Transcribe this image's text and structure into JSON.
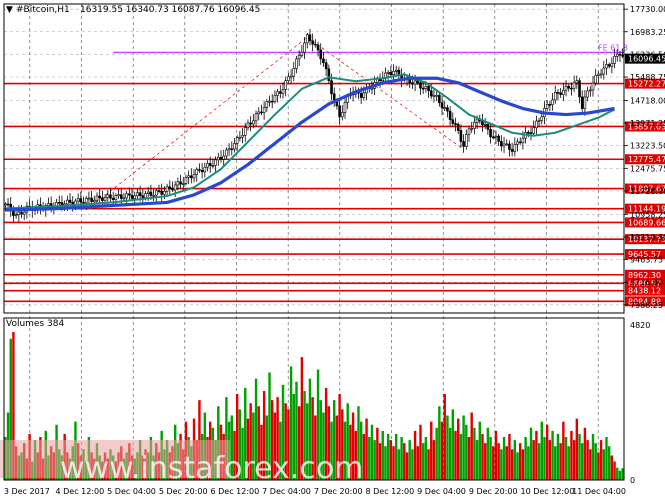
{
  "header": {
    "symbol": "#Bitcoin,H1",
    "ohlc": "16319.55 16340.73 16087.76 16096.45"
  },
  "volumes_label": "Volumes 384",
  "watermark": "www.instaforex.com",
  "fib_label": "FE 61.8",
  "current_price": "16096.45",
  "colors": {
    "level": "#e00000",
    "fib": "#c040ff",
    "ma_fast": "#1a8c80",
    "ma_slow": "#2848d0",
    "candle": "#000000",
    "vol_up": "#00a000",
    "vol_down": "#e00000",
    "background": "#ffffff"
  },
  "chart_data": {
    "type": "candlestick",
    "price_axis": {
      "ticks": [
        "17730.00",
        "16983.25",
        "16236.50",
        "15488.75",
        "14718.00",
        "13971.25",
        "13223.50",
        "12475.75",
        "11728.00",
        "10958.25",
        "10210.50",
        "9463.75",
        "8716.00",
        "7968.25"
      ],
      "range": [
        7700,
        17900
      ]
    },
    "volume_axis": {
      "ticks": [
        "4820",
        "0"
      ],
      "max": 4820
    },
    "time_axis": {
      "labels": [
        "3 Dec 2017",
        "4 Dec 12:00",
        "5 Dec 04:00",
        "5 Dec 20:00",
        "6 Dec 12:00",
        "7 Dec 04:00",
        "7 Dec 20:00",
        "8 Dec 12:00",
        "9 Dec 04:00",
        "9 Dec 20:00",
        "10 Dec 12:00",
        "11 Dec 04:00"
      ]
    },
    "levels": [
      {
        "value": 15272.27,
        "label": "15272.27"
      },
      {
        "value": 13857.03,
        "label": "13857.03"
      },
      {
        "value": 12775.47,
        "label": "12775.47"
      },
      {
        "value": 11807.67,
        "label": "11807.67"
      },
      {
        "value": 11144.19,
        "label": "11144.19"
      },
      {
        "value": 10689.66,
        "label": "10689.66"
      },
      {
        "value": 10137.73,
        "label": "10137.73"
      },
      {
        "value": 9645.57,
        "label": "9645.57"
      },
      {
        "value": 8962.3,
        "label": "8962.30"
      },
      {
        "value": 8680.57,
        "label": "8680.57"
      },
      {
        "value": 8438.12,
        "label": "8438.12"
      },
      {
        "value": 8084.88,
        "label": "8084.88"
      }
    ],
    "fib_level": 16300,
    "close_path": [
      [
        0,
        11300
      ],
      [
        4,
        10900
      ],
      [
        8,
        11150
      ],
      [
        14,
        11200
      ],
      [
        20,
        11300
      ],
      [
        28,
        11400
      ],
      [
        36,
        11500
      ],
      [
        44,
        11550
      ],
      [
        52,
        11600
      ],
      [
        58,
        11700
      ],
      [
        62,
        11850
      ],
      [
        66,
        12050
      ],
      [
        70,
        12300
      ],
      [
        74,
        12500
      ],
      [
        78,
        12700
      ],
      [
        82,
        13000
      ],
      [
        86,
        13400
      ],
      [
        90,
        13900
      ],
      [
        94,
        14300
      ],
      [
        98,
        14700
      ],
      [
        102,
        15000
      ],
      [
        106,
        15600
      ],
      [
        110,
        16400
      ],
      [
        112,
        16800
      ],
      [
        114,
        16650
      ],
      [
        118,
        16000
      ],
      [
        122,
        14700
      ],
      [
        124,
        14200
      ],
      [
        128,
        15000
      ],
      [
        132,
        14900
      ],
      [
        136,
        15200
      ],
      [
        140,
        15500
      ],
      [
        144,
        15700
      ],
      [
        148,
        15400
      ],
      [
        152,
        15300
      ],
      [
        156,
        15100
      ],
      [
        160,
        14800
      ],
      [
        164,
        14300
      ],
      [
        168,
        13700
      ],
      [
        170,
        13200
      ],
      [
        172,
        13800
      ],
      [
        176,
        14100
      ],
      [
        180,
        13600
      ],
      [
        184,
        13300
      ],
      [
        188,
        13100
      ],
      [
        192,
        13500
      ],
      [
        196,
        13800
      ],
      [
        200,
        14400
      ],
      [
        204,
        14900
      ],
      [
        208,
        15100
      ],
      [
        212,
        15300
      ],
      [
        214,
        14500
      ],
      [
        216,
        15000
      ],
      [
        220,
        15600
      ],
      [
        224,
        15900
      ],
      [
        228,
        16300
      ],
      [
        230,
        16096.45
      ]
    ],
    "ma_fast": [
      [
        0,
        11150
      ],
      [
        20,
        11230
      ],
      [
        40,
        11350
      ],
      [
        60,
        11560
      ],
      [
        70,
        11850
      ],
      [
        80,
        12450
      ],
      [
        90,
        13350
      ],
      [
        100,
        14250
      ],
      [
        110,
        15100
      ],
      [
        120,
        15480
      ],
      [
        130,
        15350
      ],
      [
        140,
        15450
      ],
      [
        148,
        15580
      ],
      [
        156,
        15300
      ],
      [
        164,
        14800
      ],
      [
        172,
        14250
      ],
      [
        180,
        13950
      ],
      [
        188,
        13650
      ],
      [
        196,
        13550
      ],
      [
        204,
        13650
      ],
      [
        212,
        13900
      ],
      [
        220,
        14150
      ],
      [
        226,
        14420
      ]
    ],
    "ma_slow": [
      [
        0,
        11100
      ],
      [
        20,
        11150
      ],
      [
        40,
        11250
      ],
      [
        60,
        11350
      ],
      [
        70,
        11600
      ],
      [
        80,
        12000
      ],
      [
        90,
        12600
      ],
      [
        100,
        13300
      ],
      [
        110,
        14000
      ],
      [
        120,
        14600
      ],
      [
        130,
        15000
      ],
      [
        140,
        15300
      ],
      [
        150,
        15450
      ],
      [
        160,
        15450
      ],
      [
        168,
        15300
      ],
      [
        176,
        15000
      ],
      [
        184,
        14700
      ],
      [
        192,
        14450
      ],
      [
        200,
        14300
      ],
      [
        208,
        14250
      ],
      [
        216,
        14300
      ],
      [
        226,
        14450
      ]
    ],
    "volumes": [
      [
        0,
        1400
      ],
      [
        1,
        2200
      ],
      [
        2,
        4600
      ],
      [
        3,
        4820
      ],
      [
        4,
        1100
      ],
      [
        5,
        800
      ],
      [
        6,
        900
      ],
      [
        7,
        1200
      ],
      [
        8,
        700
      ],
      [
        9,
        1500
      ],
      [
        10,
        600
      ],
      [
        11,
        1300
      ],
      [
        12,
        900
      ],
      [
        13,
        1400
      ],
      [
        14,
        700
      ],
      [
        15,
        1600
      ],
      [
        16,
        800
      ],
      [
        17,
        1100
      ],
      [
        18,
        900
      ],
      [
        19,
        1800
      ],
      [
        20,
        1000
      ],
      [
        21,
        800
      ],
      [
        22,
        1500
      ],
      [
        23,
        900
      ],
      [
        24,
        700
      ],
      [
        25,
        1100
      ],
      [
        26,
        1900
      ],
      [
        27,
        1200
      ],
      [
        28,
        800
      ],
      [
        29,
        1000
      ],
      [
        30,
        600
      ],
      [
        31,
        1400
      ],
      [
        32,
        900
      ],
      [
        33,
        700
      ],
      [
        34,
        1200
      ],
      [
        35,
        800
      ],
      [
        36,
        600
      ],
      [
        37,
        900
      ],
      [
        38,
        700
      ],
      [
        39,
        1000
      ],
      [
        40,
        800
      ],
      [
        41,
        600
      ],
      [
        42,
        900
      ],
      [
        43,
        1100
      ],
      [
        44,
        700
      ],
      [
        45,
        900
      ],
      [
        46,
        1200
      ],
      [
        47,
        800
      ],
      [
        48,
        700
      ],
      [
        49,
        900
      ],
      [
        50,
        1300
      ],
      [
        51,
        800
      ],
      [
        52,
        1000
      ],
      [
        53,
        900
      ],
      [
        54,
        1400
      ],
      [
        55,
        800
      ],
      [
        56,
        1200
      ],
      [
        57,
        900
      ],
      [
        58,
        1600
      ],
      [
        59,
        1000
      ],
      [
        60,
        1300
      ],
      [
        61,
        900
      ],
      [
        62,
        1100
      ],
      [
        63,
        1800
      ],
      [
        64,
        1200
      ],
      [
        65,
        1500
      ],
      [
        66,
        1000
      ],
      [
        67,
        1900
      ],
      [
        68,
        1400
      ],
      [
        69,
        1100
      ],
      [
        70,
        2000
      ],
      [
        71,
        1300
      ],
      [
        72,
        2600
      ],
      [
        73,
        1500
      ],
      [
        74,
        2200
      ],
      [
        75,
        1400
      ],
      [
        76,
        1900
      ],
      [
        77,
        1700
      ],
      [
        78,
        1300
      ],
      [
        79,
        2400
      ],
      [
        80,
        1800
      ],
      [
        81,
        1500
      ],
      [
        82,
        2700
      ],
      [
        83,
        1900
      ],
      [
        84,
        2100
      ],
      [
        85,
        1600
      ],
      [
        86,
        2800
      ],
      [
        87,
        2300
      ],
      [
        88,
        1700
      ],
      [
        89,
        3000
      ],
      [
        90,
        2000
      ],
      [
        91,
        2500
      ],
      [
        92,
        2200
      ],
      [
        93,
        3300
      ],
      [
        94,
        2400
      ],
      [
        95,
        1800
      ],
      [
        96,
        2900
      ],
      [
        97,
        2100
      ],
      [
        98,
        3500
      ],
      [
        99,
        2600
      ],
      [
        100,
        2200
      ],
      [
        101,
        2700
      ],
      [
        102,
        1900
      ],
      [
        103,
        3100
      ],
      [
        104,
        2500
      ],
      [
        105,
        2300
      ],
      [
        106,
        3700
      ],
      [
        107,
        2800
      ],
      [
        108,
        3200
      ],
      [
        109,
        2400
      ],
      [
        110,
        4000
      ],
      [
        111,
        2900
      ],
      [
        112,
        2500
      ],
      [
        113,
        3300
      ],
      [
        114,
        2700
      ],
      [
        115,
        2100
      ],
      [
        116,
        3600
      ],
      [
        117,
        2600
      ],
      [
        118,
        2200
      ],
      [
        119,
        3000
      ],
      [
        120,
        2400
      ],
      [
        121,
        1900
      ],
      [
        122,
        2600
      ],
      [
        123,
        2100
      ],
      [
        124,
        2800
      ],
      [
        125,
        2300
      ],
      [
        126,
        1900
      ],
      [
        127,
        2500
      ],
      [
        128,
        1800
      ],
      [
        129,
        2200
      ],
      [
        130,
        1600
      ],
      [
        131,
        2400
      ],
      [
        132,
        1900
      ],
      [
        133,
        1500
      ],
      [
        134,
        2000
      ],
      [
        135,
        1400
      ],
      [
        136,
        1800
      ],
      [
        137,
        1300
      ],
      [
        138,
        1700
      ],
      [
        139,
        1200
      ],
      [
        140,
        1600
      ],
      [
        141,
        1100
      ],
      [
        142,
        1500
      ],
      [
        143,
        1300
      ],
      [
        144,
        1100
      ],
      [
        145,
        1500
      ],
      [
        146,
        1000
      ],
      [
        147,
        1400
      ],
      [
        148,
        1200
      ],
      [
        149,
        900
      ],
      [
        150,
        1300
      ],
      [
        151,
        1000
      ],
      [
        152,
        1600
      ],
      [
        153,
        1100
      ],
      [
        154,
        1800
      ],
      [
        155,
        1200
      ],
      [
        156,
        1400
      ],
      [
        157,
        1000
      ],
      [
        158,
        1900
      ],
      [
        159,
        1300
      ],
      [
        160,
        1700
      ],
      [
        161,
        2400
      ],
      [
        162,
        1900
      ],
      [
        163,
        2800
      ],
      [
        164,
        2100
      ],
      [
        165,
        1700
      ],
      [
        166,
        2300
      ],
      [
        167,
        1600
      ],
      [
        168,
        2000
      ],
      [
        169,
        1500
      ],
      [
        170,
        2100
      ],
      [
        171,
        1800
      ],
      [
        172,
        1400
      ],
      [
        173,
        2200
      ],
      [
        174,
        1700
      ],
      [
        175,
        1300
      ],
      [
        176,
        1900
      ],
      [
        177,
        1500
      ],
      [
        178,
        1200
      ],
      [
        179,
        1700
      ],
      [
        180,
        1400
      ],
      [
        181,
        1100
      ],
      [
        182,
        1600
      ],
      [
        183,
        1200
      ],
      [
        184,
        1000
      ],
      [
        185,
        1400
      ],
      [
        186,
        1100
      ],
      [
        187,
        1500
      ],
      [
        188,
        1000
      ],
      [
        189,
        1300
      ],
      [
        190,
        900
      ],
      [
        191,
        1200
      ],
      [
        192,
        1000
      ],
      [
        193,
        1400
      ],
      [
        194,
        1100
      ],
      [
        195,
        1700
      ],
      [
        196,
        1300
      ],
      [
        197,
        1600
      ],
      [
        198,
        1200
      ],
      [
        199,
        1900
      ],
      [
        200,
        1400
      ],
      [
        201,
        1800
      ],
      [
        202,
        1300
      ],
      [
        203,
        1600
      ],
      [
        204,
        1100
      ],
      [
        205,
        1500
      ],
      [
        206,
        1200
      ],
      [
        207,
        1900
      ],
      [
        208,
        1400
      ],
      [
        209,
        1100
      ],
      [
        210,
        1600
      ],
      [
        211,
        1300
      ],
      [
        212,
        2000
      ],
      [
        213,
        1500
      ],
      [
        214,
        1200
      ],
      [
        215,
        1700
      ],
      [
        216,
        1300
      ],
      [
        217,
        1000
      ],
      [
        218,
        1500
      ],
      [
        219,
        1200
      ],
      [
        220,
        900
      ],
      [
        221,
        1300
      ],
      [
        222,
        1000
      ],
      [
        223,
        1400
      ],
      [
        224,
        1100
      ],
      [
        225,
        800
      ],
      [
        226,
        600
      ],
      [
        227,
        400
      ],
      [
        228,
        300
      ],
      [
        229,
        384
      ]
    ]
  }
}
